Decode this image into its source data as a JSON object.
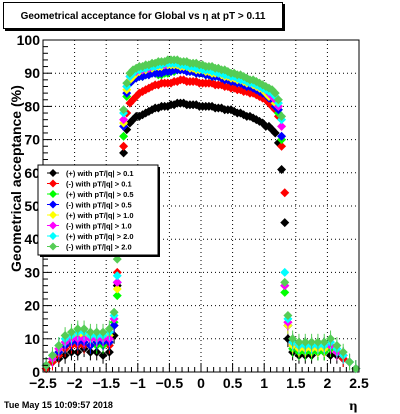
{
  "title": "Geometrical acceptance for Global vs  η at pT > 0.11",
  "footer": "Tue May 15 10:09:57 2018",
  "chart_data": {
    "type": "scatter",
    "xlabel": "η",
    "ylabel": "Geometrical acceptance (%)",
    "xlim": [
      -2.5,
      2.5
    ],
    "ylim": [
      0,
      100
    ],
    "x_ticks": [
      "−2.5",
      "−2",
      "−1.5",
      "−1",
      "−0.5",
      "0",
      "0.5",
      "1",
      "1.5",
      "2",
      "2.5"
    ],
    "y_ticks": [
      "0",
      "10",
      "20",
      "30",
      "40",
      "50",
      "60",
      "70",
      "80",
      "90",
      "100"
    ],
    "grid": true,
    "legend_position": "left",
    "x": [
      -2.45,
      -2.35,
      -2.25,
      -2.15,
      -2.05,
      -1.95,
      -1.85,
      -1.75,
      -1.65,
      -1.55,
      -1.45,
      -1.375,
      -1.325,
      -1.275,
      -1.225,
      -1.175,
      -1.125,
      -1.075,
      -1.025,
      -0.975,
      -0.925,
      -0.875,
      -0.825,
      -0.775,
      -0.725,
      -0.675,
      -0.625,
      -0.575,
      -0.525,
      -0.475,
      -0.425,
      -0.375,
      -0.325,
      -0.275,
      -0.225,
      -0.175,
      -0.125,
      -0.075,
      -0.025,
      0.025,
      0.075,
      0.125,
      0.175,
      0.225,
      0.275,
      0.325,
      0.375,
      0.425,
      0.475,
      0.525,
      0.575,
      0.625,
      0.675,
      0.725,
      0.775,
      0.825,
      0.875,
      0.925,
      0.975,
      1.025,
      1.075,
      1.125,
      1.175,
      1.225,
      1.275,
      1.325,
      1.375,
      1.45,
      1.55,
      1.65,
      1.75,
      1.85,
      1.95,
      2.05,
      2.15,
      2.25,
      2.35,
      2.45
    ],
    "series": [
      {
        "name": "(+) with pT/|q| > 0.1",
        "color": "#000000",
        "values": [
          1,
          3,
          4,
          5,
          6,
          6,
          7,
          6,
          6,
          5,
          6,
          11,
          26,
          52,
          66,
          73,
          75,
          76,
          77,
          77,
          77.5,
          78,
          78.5,
          79,
          79.5,
          79.5,
          80,
          80,
          80,
          80.5,
          80.5,
          81,
          81,
          81,
          80.5,
          80.5,
          80.5,
          80.5,
          80,
          80,
          80,
          80,
          80,
          79.5,
          79.5,
          79.5,
          79,
          79,
          79,
          78.5,
          78,
          78,
          77.5,
          77,
          77,
          76.5,
          76,
          75.5,
          75,
          74,
          74,
          73,
          72,
          69,
          61,
          45,
          10,
          6,
          5,
          5,
          5,
          6,
          6,
          5,
          5,
          4,
          3,
          1
        ]
      },
      {
        "name": "(-) with pT/|q| > 0.1",
        "color": "#ff0000",
        "values": [
          1,
          3,
          5,
          7,
          8,
          8,
          8,
          8,
          9,
          9,
          8,
          14,
          30,
          52,
          68,
          78,
          81,
          82,
          83,
          84,
          84.5,
          85,
          85.5,
          86,
          86.5,
          86.5,
          87,
          87,
          87,
          87,
          87.5,
          87.5,
          88,
          88,
          87.5,
          87.5,
          87.5,
          87.5,
          87,
          87,
          87,
          87,
          87,
          86.5,
          86.5,
          86.5,
          86,
          86,
          85.5,
          85.5,
          85,
          85,
          84.5,
          84.5,
          84,
          84,
          83.5,
          83,
          82.5,
          82,
          81,
          80,
          79,
          77,
          68,
          54,
          15,
          9,
          8,
          8,
          8,
          8,
          8,
          7,
          6,
          4,
          3,
          1
        ]
      },
      {
        "name": "(+) with pT/|q| > 0.5",
        "color": "#00ff00",
        "values": [
          2,
          4,
          6,
          8,
          9,
          9,
          9,
          8,
          8,
          8,
          9,
          15,
          23,
          52,
          71,
          83,
          87,
          88,
          89,
          89,
          89,
          89.5,
          90,
          90,
          90,
          89.5,
          89.5,
          90,
          90,
          90.5,
          90.5,
          91,
          91,
          91,
          91,
          90.5,
          90.5,
          90,
          90,
          90,
          89.5,
          89.5,
          89,
          89,
          89,
          88.5,
          88.5,
          88,
          88,
          87.5,
          87.5,
          87,
          87,
          86.5,
          86,
          86,
          85.5,
          85,
          84.5,
          84,
          83,
          82,
          80,
          78,
          70,
          24,
          14,
          7,
          6,
          6,
          6,
          6,
          6,
          7,
          6,
          5,
          3,
          1
        ]
      },
      {
        "name": "(-) with pT/|q| > 0.5",
        "color": "#0000ff",
        "values": [
          2,
          4,
          6,
          8,
          9,
          9,
          9,
          8,
          9,
          9,
          9,
          14,
          27,
          52,
          74,
          84,
          87,
          88,
          88.5,
          89,
          89,
          89.5,
          89.5,
          90,
          90,
          90,
          90,
          90.5,
          90.5,
          90.5,
          91,
          91,
          91,
          91,
          90.5,
          90.5,
          90.5,
          90,
          90,
          90,
          89.5,
          89.5,
          89,
          89,
          89,
          88.5,
          88,
          88,
          87.5,
          87.5,
          87,
          87,
          86.5,
          86,
          86,
          85.5,
          85,
          84.5,
          84,
          83.5,
          82.5,
          82,
          80,
          79,
          71,
          26,
          14,
          8,
          7,
          7,
          7,
          7,
          7,
          8,
          6,
          5,
          3,
          1
        ]
      },
      {
        "name": "(+) with pT/|q| > 1.0",
        "color": "#ffff00",
        "values": [
          2,
          4,
          7,
          9,
          10,
          11,
          11,
          10,
          10,
          10,
          11,
          16,
          25,
          52,
          75,
          85,
          88,
          89,
          90,
          90.5,
          91,
          91,
          91.5,
          91.5,
          92,
          92,
          92,
          92.5,
          92.5,
          92.5,
          92.5,
          92.5,
          92,
          92,
          92,
          91.5,
          91.5,
          91,
          91,
          91,
          90.5,
          90.5,
          90,
          90,
          90,
          89.5,
          89,
          89,
          88.5,
          88.5,
          88,
          88,
          87.5,
          87,
          87,
          86.5,
          86,
          85.5,
          85,
          84,
          83,
          83,
          81,
          80,
          74,
          26,
          14,
          8,
          7,
          7,
          7,
          7,
          7,
          8,
          6,
          5,
          3,
          1
        ]
      },
      {
        "name": "(-) with pT/|q| > 1.0",
        "color": "#ff00ff",
        "values": [
          2,
          4,
          7,
          9,
          10,
          10,
          10,
          10,
          10,
          10,
          10,
          16,
          27,
          52,
          76,
          86,
          89,
          90,
          90.5,
          91,
          91,
          91.5,
          91.5,
          92,
          92,
          92.5,
          92.5,
          92.5,
          93,
          93,
          93,
          93,
          92.5,
          92.5,
          92.5,
          92,
          92,
          92,
          91.5,
          91.5,
          91,
          91,
          91,
          90.5,
          90,
          90,
          89.5,
          89.5,
          89,
          89,
          88.5,
          88,
          88,
          87.5,
          87,
          87,
          86.5,
          86,
          85.5,
          85,
          84,
          83,
          82,
          80,
          74,
          26,
          15,
          9,
          8,
          8,
          8,
          8,
          8,
          8,
          6,
          5,
          3,
          1
        ]
      },
      {
        "name": "(+) with pT/|q| > 2.0",
        "color": "#00ffff",
        "values": [
          2,
          5,
          8,
          10,
          11,
          12,
          12,
          11,
          11,
          11,
          12,
          17,
          29,
          52,
          78,
          86,
          89,
          90,
          91,
          91,
          91.5,
          91.5,
          92,
          92,
          92,
          92.5,
          92.5,
          93,
          93,
          93,
          93,
          93,
          92.5,
          92.5,
          92,
          92,
          92,
          91.5,
          91.5,
          91,
          91,
          91,
          90.5,
          90.5,
          90,
          90,
          89.5,
          89.5,
          89,
          89,
          88.5,
          88,
          88,
          87.5,
          87,
          87,
          86.5,
          86,
          85.5,
          85,
          84.5,
          84,
          83,
          81,
          76,
          30,
          16,
          9,
          8,
          8,
          8,
          8,
          8,
          9,
          7,
          5,
          3,
          1
        ]
      },
      {
        "name": "(-) with pT/|q| > 2.0",
        "color": "#55cc55",
        "values": [
          2,
          5,
          8,
          11,
          12,
          13,
          13,
          12,
          12,
          12,
          13,
          18,
          34,
          52,
          79,
          87,
          90,
          91,
          91.5,
          92,
          92,
          92.5,
          92.5,
          93,
          93,
          93.5,
          93.5,
          93.5,
          94,
          94,
          94,
          94,
          93.5,
          93.5,
          93.5,
          93,
          93,
          93,
          92.5,
          92.5,
          92,
          92,
          92,
          91.5,
          91.5,
          91,
          91,
          90.5,
          90,
          90,
          89.5,
          89.5,
          89,
          88.5,
          88,
          88,
          87.5,
          87,
          86.5,
          86,
          85.5,
          85,
          84,
          82,
          77,
          27,
          17,
          10,
          9,
          9,
          9,
          9,
          9,
          10,
          8,
          6,
          3,
          1
        ]
      }
    ]
  }
}
